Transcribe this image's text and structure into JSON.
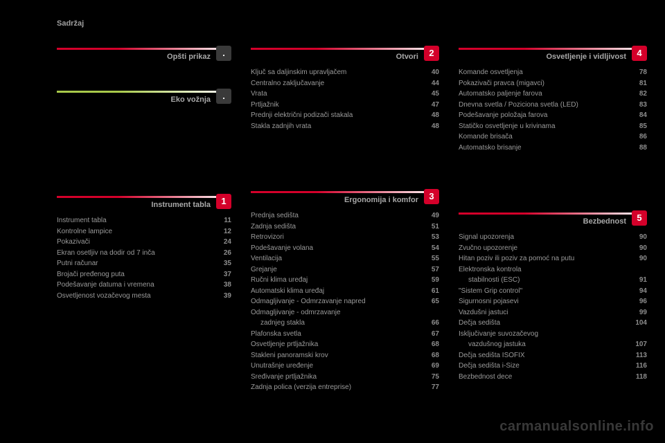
{
  "page_title": "Sadržaj",
  "watermark": "carmanualsonline.info",
  "colors": {
    "bg": "#000000",
    "text": "#9a9a9a",
    "pageno": "#8d8d8d",
    "red": "#d4002a",
    "green": "#a8c94a",
    "badge_text": "#ffffff"
  },
  "sections": {
    "overview": {
      "title": "Opšti prikaz",
      "badge": ".",
      "gradient_from": "#d4002a",
      "gradient_to": "#ffffff",
      "badge_bg": "#3a3a3a",
      "items": []
    },
    "eco": {
      "title": "Eko vožnja",
      "badge": ".",
      "gradient_from": "#a8c94a",
      "gradient_to": "#ffffff",
      "badge_bg": "#3a3a3a",
      "items": []
    },
    "instrument": {
      "title": "Instrument tabla",
      "badge": "1",
      "gradient_from": "#d4002a",
      "gradient_to": "#ffffff",
      "badge_bg": "#d4002a",
      "items": [
        {
          "label": "Instrument tabla",
          "page": "11"
        },
        {
          "label": "Kontrolne lampice",
          "page": "12"
        },
        {
          "label": "Pokazivači",
          "page": "24"
        },
        {
          "label": "Ekran osetljiv na dodir od 7 inča",
          "page": "26"
        },
        {
          "label": "Putni računar",
          "page": "35"
        },
        {
          "label": "Brojači pređenog puta",
          "page": "37"
        },
        {
          "label": "Podešavanje datuma i vremena",
          "page": "38"
        },
        {
          "label": "Osvetljenost vozačevog mesta",
          "page": "39"
        }
      ]
    },
    "otvori": {
      "title": "Otvori",
      "badge": "2",
      "gradient_from": "#d4002a",
      "gradient_to": "#ffffff",
      "badge_bg": "#d4002a",
      "items": [
        {
          "label": "Ključ sa daljinskim upravljačem",
          "page": "40"
        },
        {
          "label": "Centralno zaključavanje",
          "page": "44"
        },
        {
          "label": "Vrata",
          "page": "45"
        },
        {
          "label": "Prtljažnik",
          "page": "47"
        },
        {
          "label": "Prednji električni podizači stakala",
          "page": "48"
        },
        {
          "label": "Stakla zadnjih vrata",
          "page": "48"
        }
      ]
    },
    "ergon": {
      "title": "Ergonomija i komfor",
      "badge": "3",
      "gradient_from": "#d4002a",
      "gradient_to": "#ffffff",
      "badge_bg": "#d4002a",
      "items": [
        {
          "label": "Prednja sedišta",
          "page": "49"
        },
        {
          "label": "Zadnja sedišta",
          "page": "51"
        },
        {
          "label": "Retrovizori",
          "page": "53"
        },
        {
          "label": "Podešavanje volana",
          "page": "54"
        },
        {
          "label": "Ventilacija",
          "page": "55"
        },
        {
          "label": "Grejanje",
          "page": "57"
        },
        {
          "label": "Ručni klima uređaj",
          "page": "59"
        },
        {
          "label": "Automatski klima uređaj",
          "page": "61"
        },
        {
          "label": "Odmagljivanje - Odmrzavanje napred",
          "page": "65"
        },
        {
          "label": "Odmagljivanje - odmrzavanje zadnjeg stakla",
          "page": "66",
          "wrap": true
        },
        {
          "label": "Plafonska svetla",
          "page": "67"
        },
        {
          "label": "Osvetljenje prtljažnika",
          "page": "68"
        },
        {
          "label": "Stakleni panoramski krov",
          "page": "68"
        },
        {
          "label": "Unutrašnje uređenje",
          "page": "69"
        },
        {
          "label": "Sređivanje prtljažnika",
          "page": "75"
        },
        {
          "label": "Zadnja polica (verzija entreprise)",
          "page": "77"
        }
      ]
    },
    "osvet": {
      "title": "Osvetljenje i vidljivost",
      "badge": "4",
      "gradient_from": "#d4002a",
      "gradient_to": "#ffffff",
      "badge_bg": "#d4002a",
      "items": [
        {
          "label": "Komande osvetljenja",
          "page": "78"
        },
        {
          "label": "Pokazivači pravca (migavci)",
          "page": "81"
        },
        {
          "label": "Automatsko paljenje farova",
          "page": "82"
        },
        {
          "label": "Dnevna svetla / Poziciona svetla (LED)",
          "page": "83"
        },
        {
          "label": "Podešavanje položaja farova",
          "page": "84"
        },
        {
          "label": "Statičko osvetljenje u krivinama",
          "page": "85"
        },
        {
          "label": "Komande brisača",
          "page": "86"
        },
        {
          "label": "Automatsko brisanje",
          "page": "88"
        }
      ]
    },
    "bezbed": {
      "title": "Bezbednost",
      "badge": "5",
      "gradient_from": "#d4002a",
      "gradient_to": "#ffffff",
      "badge_bg": "#d4002a",
      "items": [
        {
          "label": "Signal upozorenja",
          "page": "90"
        },
        {
          "label": "Zvučno upozorenje",
          "page": "90"
        },
        {
          "label": "Hitan poziv ili poziv za pomoć na putu",
          "page": "90"
        },
        {
          "label": "Elektronska kontrola stabilnosti (ESC)",
          "page": "91",
          "wrap": true
        },
        {
          "label": "\"Sistem Grip control\"",
          "page": "94"
        },
        {
          "label": "Sigurnosni pojasevi",
          "page": "96"
        },
        {
          "label": "Vazdušni jastuci",
          "page": "99"
        },
        {
          "label": "Dečja sedišta",
          "page": "104"
        },
        {
          "label": "Isključivanje suvozačevog vazdušnog jastuka",
          "page": "107",
          "wrap": true
        },
        {
          "label": "Dečja sedišta ISOFIX",
          "page": "113"
        },
        {
          "label": "Dečja sedišta i-Size",
          "page": "116"
        },
        {
          "label": "Bezbednost dece",
          "page": "118"
        }
      ]
    }
  }
}
